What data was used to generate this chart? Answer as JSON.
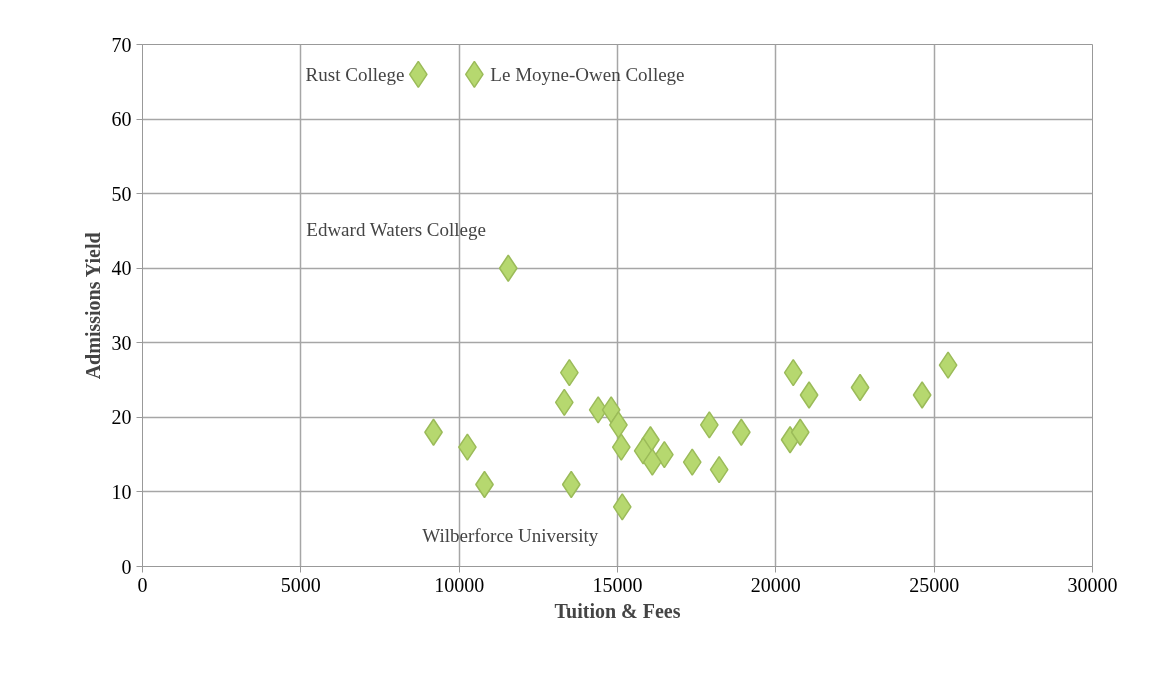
{
  "chart_data": {
    "type": "scatter",
    "xlabel": "Tuition & Fees",
    "ylabel": "Admissions Yield",
    "x": [
      8710,
      10480,
      11550,
      13480,
      13320,
      14390,
      14800,
      15030,
      9190,
      10260,
      15120,
      16040,
      15810,
      16480,
      16100,
      17360,
      18210,
      17900,
      18910,
      10800,
      13540,
      15150,
      20550,
      21050,
      22660,
      24620,
      25440,
      20450,
      20770
    ],
    "series": [
      {
        "color": "#b6d86f",
        "values": [
          66,
          66,
          40,
          26,
          22,
          21,
          21,
          19,
          18,
          16,
          16,
          17,
          15.5,
          15,
          14,
          14,
          13,
          19,
          18,
          11,
          11,
          8,
          26,
          23,
          24,
          23,
          27,
          17,
          18
        ]
      }
    ],
    "xlim": [
      0,
      30000
    ],
    "ylim": [
      0,
      70
    ],
    "xticks": [
      0,
      5000,
      10000,
      15000,
      20000,
      25000,
      30000
    ],
    "yticks": [
      0,
      10,
      20,
      30,
      40,
      50,
      60,
      70
    ],
    "grid": true,
    "marker": "diamond",
    "annotations": [
      {
        "text": "Rust College",
        "x": 8710,
        "y": 66
      },
      {
        "text": "Le Moyne-Owen College",
        "x": 10480,
        "y": 66
      },
      {
        "text": "Edward Waters College",
        "x": 11550,
        "y": 40
      },
      {
        "text": "Wilberforce University",
        "x": 15150,
        "y": 8
      }
    ]
  }
}
